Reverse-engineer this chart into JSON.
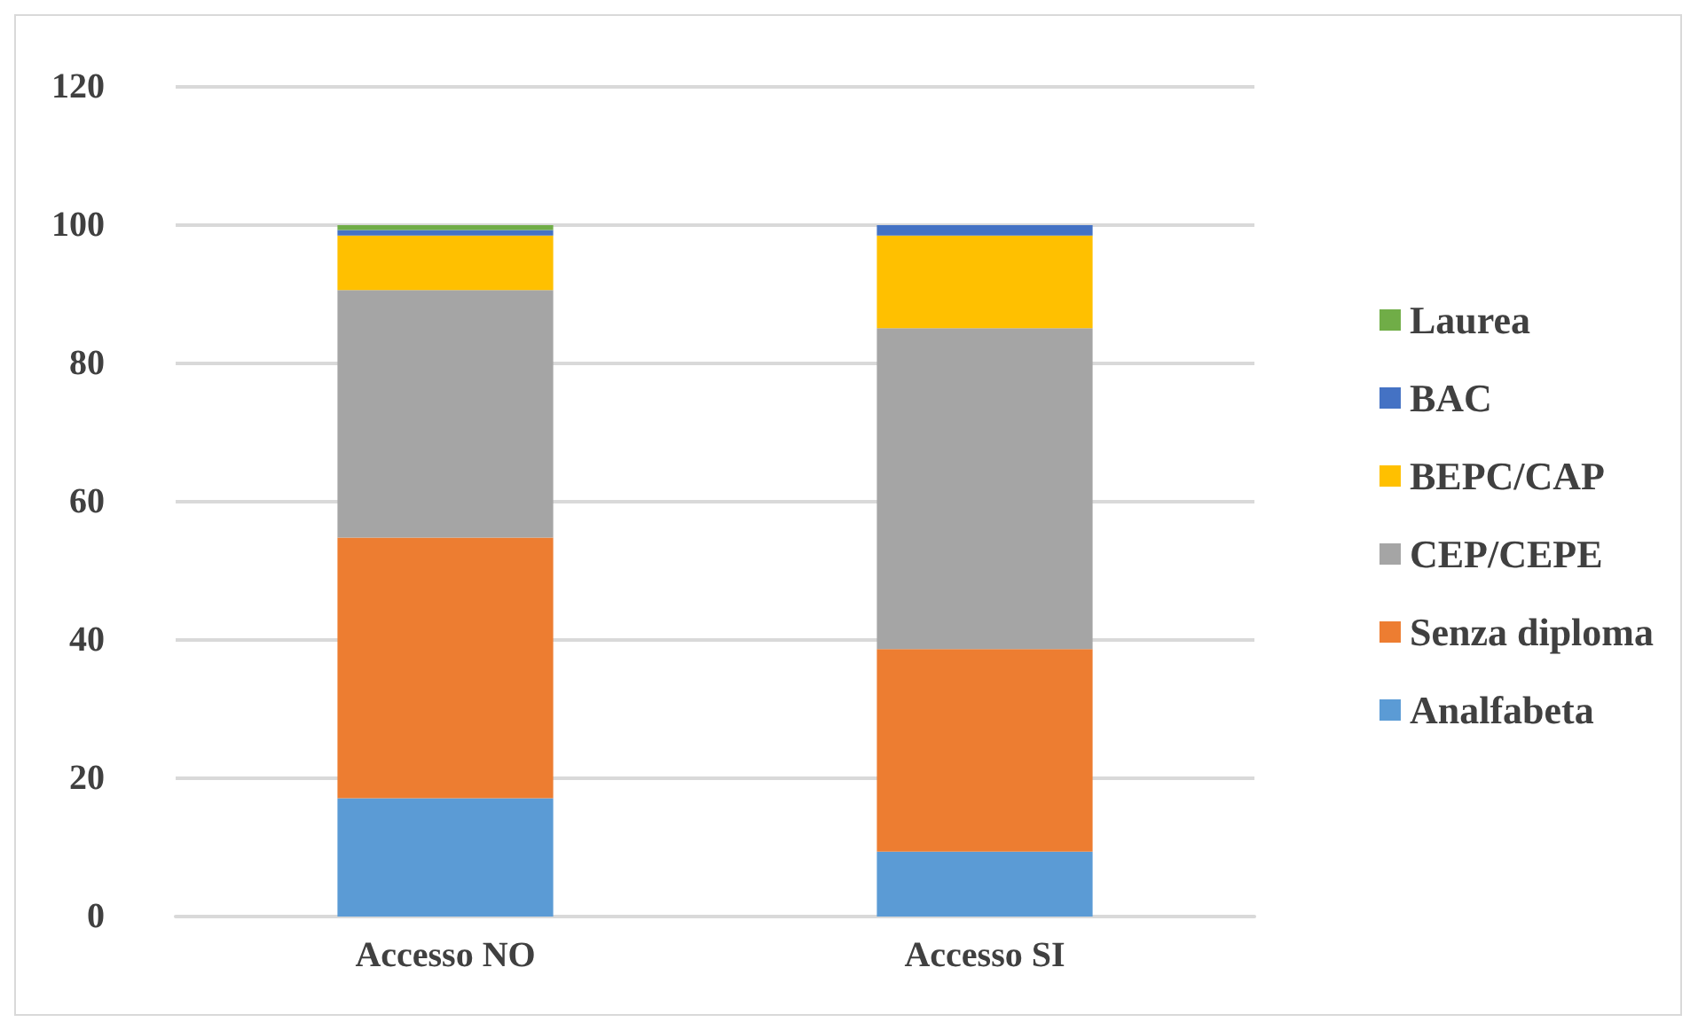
{
  "chart_data": {
    "type": "bar",
    "stacked": true,
    "categories": [
      "Accesso NO",
      "Accesso SI"
    ],
    "series": [
      {
        "name": "Analfabeta",
        "color": "#5b9bd5",
        "values": [
          17.1,
          9.4
        ]
      },
      {
        "name": "Senza diploma",
        "color": "#ed7d31",
        "values": [
          37.7,
          29.3
        ]
      },
      {
        "name": "CEP/CEPE",
        "color": "#a5a5a5",
        "values": [
          35.8,
          46.4
        ]
      },
      {
        "name": "BEPC/CAP",
        "color": "#ffc000",
        "values": [
          7.9,
          13.4
        ]
      },
      {
        "name": "BAC",
        "color": "#4472c4",
        "values": [
          0.8,
          1.5
        ]
      },
      {
        "name": "Laurea",
        "color": "#70ad47",
        "values": [
          0.7,
          null
        ]
      }
    ],
    "ylim": [
      0,
      120
    ],
    "yticks": [
      0,
      20,
      40,
      60,
      80,
      100,
      120
    ],
    "grid": "y",
    "legend": "right"
  }
}
